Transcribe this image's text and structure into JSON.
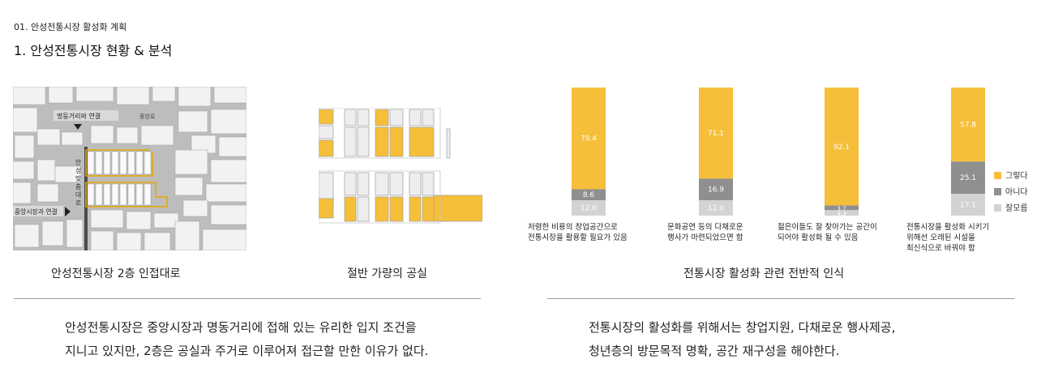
{
  "header": {
    "kicker": "01. 안성전통시장 활성화 계획",
    "title": "1. 안성전통시장 현황 & 분석"
  },
  "map": {
    "label_top": "명동거리와 연결",
    "label_road": "중앙로",
    "label_vertical": "안성맞춤대로",
    "label_left": "중앙시장과 연결",
    "caption": "안성전통시장 2층 인접대로"
  },
  "vacancy": {
    "caption": "절반 가량의 공실"
  },
  "colors": {
    "yes": "#f6bf3a",
    "no": "#8f8f8f",
    "unknown": "#d3d3d3",
    "building": "#eeeeee"
  },
  "chart_data": {
    "type": "bar",
    "title": "전통시장 활성화 관련 전반적 인식",
    "stacked": true,
    "categories": [
      "저렴한 비용의 창업공간으로 전통시장을 활용할 필요가 있음",
      "문화공연 등의 다채로운 행사가 마련되었으면 함",
      "젊은이들도 잘 찾아가는 공간이 되어야 활성화 될 수 있음",
      "전통시장을 활성화 시키기 위해선 오래된 시설을 최신식으로 바꿔야 함"
    ],
    "category_lines": [
      [
        "저렴한 비용의 창업공간으로",
        "전통시장을 활용할 필요가 있음"
      ],
      [
        "문화공연 등의 다채로운",
        "행사가 마련되었으면 함"
      ],
      [
        "젊은이들도 잘 찾아가는 공간이",
        "되어야 활성화 될 수 있음"
      ],
      [
        "전통시장을 활성화 시키기",
        "위해선 오래된 시설을",
        "최신식으로 바꿔야 함"
      ]
    ],
    "series": [
      {
        "name": "그렇다",
        "values": [
          79.4,
          71.1,
          92.1,
          57.8
        ]
      },
      {
        "name": "아니다",
        "values": [
          8.6,
          16.9,
          3.7,
          25.1
        ]
      },
      {
        "name": "잘모름",
        "values": [
          12.0,
          12.0,
          4.3,
          17.1
        ]
      }
    ],
    "value_labels": [
      [
        "79.4",
        "71.1",
        "92.1",
        "57.8"
      ],
      [
        "8.6",
        "16.9",
        "3.7",
        "25.1"
      ],
      [
        "12.0",
        "12.0",
        "4.3",
        "17.1"
      ]
    ],
    "legend_position": "right",
    "ylim": [
      0,
      100
    ],
    "grid": false
  },
  "summary": {
    "left": [
      "안성전통시장은 중앙시장과 명동거리에 접해 있는 유리한 입지 조건을",
      "지니고 있지만, 2층은 공실과 주거로 이루어져 접근할 만한 이유가 없다."
    ],
    "right": [
      "전통시장의 활성화를 위해서는 창업지원, 다채로운 행사제공,",
      "청년층의 방문목적 명확, 공간 재구성을 해야한다."
    ]
  }
}
